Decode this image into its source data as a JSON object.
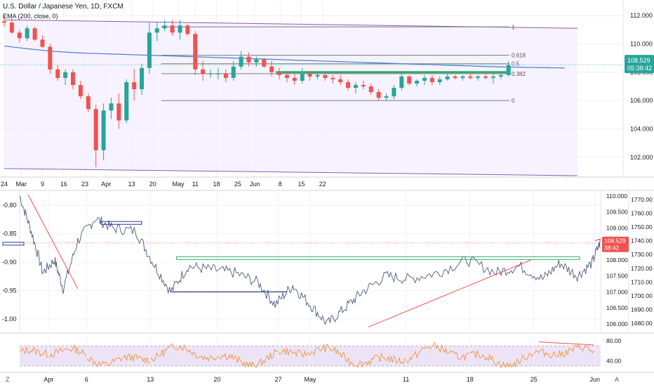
{
  "header": {
    "title": "U.S. Dollar / Japanese Yen, 1D, FXCM",
    "indicator": "EMA (200, close, 0)"
  },
  "footer": {
    "left_button": "Z",
    "auto_button": "A"
  },
  "colors": {
    "up": "#26a69a",
    "down": "#ef5350",
    "ema": "#4a7bd6",
    "channel": "#8b5bb5",
    "fib": "#787b86",
    "green_line": "#33a86b",
    "blue_line": "#2b3a8f",
    "red_trend": "#ef5350",
    "rsi_line": "#f08a24",
    "rsi_band": "#ede3f7",
    "price_tag": "#ef5350"
  },
  "chart_data": [
    {
      "type": "candlestick",
      "title": "U.S. Dollar / Japanese Yen, 1D, FXCM",
      "ylim": [
        100.6,
        113.0
      ],
      "y_ticks": [
        102.0,
        104.0,
        106.0,
        108.0,
        110.0,
        112.0
      ],
      "x_ticks": [
        {
          "label": "24",
          "t": 0
        },
        {
          "label": "Mar",
          "t": 4
        },
        {
          "label": "9",
          "t": 9
        },
        {
          "label": "16",
          "t": 14
        },
        {
          "label": "23",
          "t": 19
        },
        {
          "label": "Apr",
          "t": 24
        },
        {
          "label": "13",
          "t": 30
        },
        {
          "label": "20",
          "t": 35
        },
        {
          "label": "May",
          "t": 41
        },
        {
          "label": "11",
          "t": 45
        },
        {
          "label": "18",
          "t": 50
        },
        {
          "label": "25",
          "t": 55
        },
        {
          "label": "Jun",
          "t": 59
        },
        {
          "label": "8",
          "t": 65
        },
        {
          "label": "15",
          "t": 70
        },
        {
          "label": "22",
          "t": 75
        }
      ],
      "candles": [
        [
          111.6,
          112.0,
          111.2,
          111.5
        ],
        [
          111.5,
          111.8,
          110.7,
          110.8
        ],
        [
          110.8,
          111.0,
          110.1,
          110.4
        ],
        [
          110.4,
          111.3,
          110.2,
          111.1
        ],
        [
          111.1,
          111.2,
          110.2,
          110.3
        ],
        [
          110.3,
          110.6,
          109.7,
          109.8
        ],
        [
          109.8,
          110.0,
          107.9,
          108.2
        ],
        [
          108.2,
          108.5,
          107.4,
          107.6
        ],
        [
          107.6,
          108.2,
          107.1,
          108.0
        ],
        [
          108.0,
          108.2,
          106.8,
          107.1
        ],
        [
          107.1,
          107.4,
          106.1,
          106.3
        ],
        [
          106.3,
          106.5,
          105.2,
          105.4
        ],
        [
          105.4,
          105.7,
          101.3,
          102.5
        ],
        [
          102.5,
          105.8,
          101.8,
          105.3
        ],
        [
          105.3,
          106.2,
          104.7,
          105.8
        ],
        [
          105.8,
          106.5,
          104.0,
          104.6
        ],
        [
          104.6,
          107.5,
          104.4,
          107.3
        ],
        [
          107.3,
          108.2,
          106.0,
          106.8
        ],
        [
          106.8,
          108.6,
          106.4,
          108.3
        ],
        [
          108.3,
          111.5,
          107.9,
          110.8
        ],
        [
          110.8,
          111.5,
          110.2,
          111.1
        ],
        [
          111.1,
          111.7,
          110.9,
          111.3
        ],
        [
          111.3,
          111.7,
          110.6,
          110.8
        ],
        [
          110.8,
          111.7,
          110.3,
          111.3
        ],
        [
          111.3,
          111.4,
          110.6,
          110.7
        ],
        [
          110.7,
          110.9,
          107.8,
          108.2
        ],
        [
          108.2,
          108.8,
          107.4,
          107.9
        ],
        [
          107.9,
          108.2,
          107.6,
          107.9
        ],
        [
          107.9,
          108.3,
          107.5,
          107.9
        ],
        [
          107.9,
          108.2,
          107.3,
          107.6
        ],
        [
          107.6,
          108.8,
          107.4,
          108.4
        ],
        [
          108.4,
          109.5,
          108.2,
          109.1
        ],
        [
          109.1,
          109.4,
          108.4,
          108.7
        ],
        [
          108.7,
          109.1,
          108.4,
          108.9
        ],
        [
          108.9,
          109.0,
          108.3,
          108.4
        ],
        [
          108.4,
          108.8,
          107.7,
          108.0
        ],
        [
          108.0,
          108.3,
          107.5,
          107.8
        ],
        [
          107.8,
          108.0,
          107.3,
          107.6
        ],
        [
          107.6,
          107.9,
          107.1,
          107.4
        ],
        [
          107.4,
          108.3,
          107.2,
          107.9
        ],
        [
          107.9,
          108.1,
          107.4,
          107.7
        ],
        [
          107.7,
          108.0,
          107.5,
          107.8
        ],
        [
          107.8,
          108.0,
          107.4,
          107.6
        ],
        [
          107.6,
          107.8,
          107.2,
          107.5
        ],
        [
          107.5,
          107.8,
          107.1,
          107.3
        ],
        [
          107.3,
          107.5,
          106.7,
          106.9
        ],
        [
          106.9,
          107.3,
          106.5,
          107.1
        ],
        [
          107.1,
          107.4,
          106.8,
          107.0
        ],
        [
          107.0,
          107.2,
          106.4,
          106.6
        ],
        [
          106.6,
          106.8,
          106.0,
          106.2
        ],
        [
          106.2,
          106.5,
          106.0,
          106.3
        ],
        [
          106.3,
          107.1,
          106.1,
          106.9
        ],
        [
          106.9,
          107.9,
          106.7,
          107.7
        ],
        [
          107.7,
          107.8,
          107.1,
          107.2
        ],
        [
          107.2,
          107.5,
          107.0,
          107.4
        ],
        [
          107.4,
          107.8,
          107.1,
          107.6
        ],
        [
          107.6,
          107.8,
          107.1,
          107.3
        ],
        [
          107.3,
          107.7,
          107.1,
          107.5
        ],
        [
          107.5,
          107.9,
          107.4,
          107.7
        ],
        [
          107.7,
          107.8,
          107.5,
          107.6
        ],
        [
          107.6,
          107.8,
          107.4,
          107.7
        ],
        [
          107.7,
          107.9,
          107.5,
          107.6
        ],
        [
          107.6,
          107.8,
          107.4,
          107.7
        ],
        [
          107.7,
          107.9,
          107.5,
          107.6
        ],
        [
          107.6,
          107.9,
          107.2,
          107.7
        ],
        [
          107.7,
          108.0,
          107.5,
          107.8
        ],
        [
          107.8,
          108.8,
          107.7,
          108.5
        ]
      ],
      "ema_200": [
        109.85,
        109.78,
        109.71,
        109.64,
        109.58,
        109.52,
        109.47,
        109.43,
        109.39,
        109.36,
        109.34,
        109.32,
        109.3,
        109.28,
        109.26,
        109.24,
        109.22,
        109.2,
        109.18,
        109.16,
        109.14,
        109.12,
        109.1,
        109.08,
        109.06,
        109.04,
        109.02,
        109.0,
        108.98,
        108.96,
        108.94,
        108.92,
        108.9,
        108.88,
        108.86,
        108.84,
        108.82,
        108.8,
        108.78,
        108.76,
        108.74,
        108.72,
        108.7,
        108.68,
        108.66,
        108.64,
        108.62,
        108.6,
        108.58,
        108.56,
        108.54,
        108.52,
        108.5,
        108.48,
        108.46,
        108.44,
        108.42,
        108.4,
        108.38,
        108.37,
        108.36,
        108.35,
        108.34,
        108.33,
        108.32,
        108.31,
        108.3
      ],
      "fib_levels": [
        {
          "label": "1",
          "value": 111.2
        },
        {
          "label": "0.618",
          "value": 109.2
        },
        {
          "label": "0.5",
          "value": 108.6
        },
        {
          "label": "0.382",
          "value": 107.9
        },
        {
          "label": "0",
          "value": 106.0
        }
      ],
      "last_price": "108.529",
      "countdown": "05:38:42"
    },
    {
      "type": "line",
      "left_axis_ticks": [
        "-0.80",
        "-0.85",
        "-0.90",
        "-0.95",
        "-1.00"
      ],
      "left_ylim": [
        -1.02,
        -0.775
      ],
      "right_axis_ticks": [
        "110.000",
        "109.500",
        "109.000",
        "108.500",
        "108.000",
        "107.500",
        "107.000",
        "106.500",
        "106.000"
      ],
      "right_ylim": [
        105.8,
        110.15
      ],
      "far_right_axis_ticks": [
        "1770.00",
        "1760.00",
        "1750.00",
        "1740.00",
        "1730.00",
        "1720.00",
        "1710.00",
        "1700.00",
        "1690.00",
        "1680.00"
      ],
      "x_ticks": [
        {
          "label": "Apr",
          "t": 0.05
        },
        {
          "label": "6",
          "t": 0.115
        },
        {
          "label": "13",
          "t": 0.225
        },
        {
          "label": "20",
          "t": 0.34
        },
        {
          "label": "27",
          "t": 0.445
        },
        {
          "label": "May",
          "t": 0.5
        },
        {
          "label": "11",
          "t": 0.665
        },
        {
          "label": "18",
          "t": 0.775
        },
        {
          "label": "25",
          "t": 0.885
        },
        {
          "label": "Jun",
          "t": 0.99
        }
      ],
      "last_price": "108.529",
      "countdown": "38:42"
    },
    {
      "type": "line",
      "y_ticks": [
        "80.00",
        "40.00"
      ],
      "ylim": [
        20,
        90
      ],
      "band": [
        30,
        70
      ]
    }
  ]
}
